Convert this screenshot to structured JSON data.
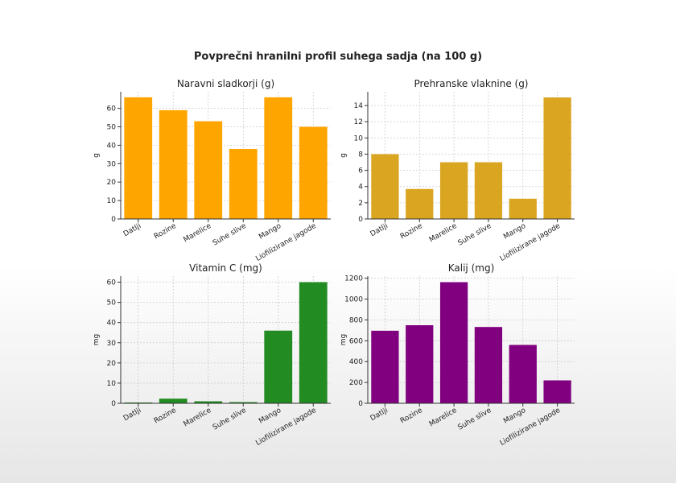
{
  "figure_title": "Povprečni hranilni profil suhega sadja (na 100 g)",
  "chart_data": [
    {
      "type": "bar",
      "title": "Naravni sladkorji (g)",
      "ylabel": "g",
      "xlabel": "",
      "categories": [
        "Datlji",
        "Rozine",
        "Marelice",
        "Suhe slive",
        "Mango",
        "Liofilizirane jagode"
      ],
      "values": [
        66,
        59,
        53,
        38,
        66,
        50
      ],
      "ylim": [
        0,
        69
      ],
      "yticks": [
        0,
        10,
        20,
        30,
        40,
        50,
        60
      ],
      "color": "#ffa500",
      "grid": true
    },
    {
      "type": "bar",
      "title": "Prehranske vlaknine (g)",
      "ylabel": "g",
      "xlabel": "",
      "categories": [
        "Datlji",
        "Rozine",
        "Marelice",
        "Suhe slive",
        "Mango",
        "Liofilizirane jagode"
      ],
      "values": [
        8,
        3.7,
        7,
        7,
        2.5,
        15
      ],
      "ylim": [
        0,
        15.7
      ],
      "yticks": [
        0,
        2,
        4,
        6,
        8,
        10,
        12,
        14
      ],
      "color": "#daa520",
      "grid": true
    },
    {
      "type": "bar",
      "title": "Vitamin C (mg)",
      "ylabel": "mg",
      "xlabel": "",
      "categories": [
        "Datlji",
        "Rozine",
        "Marelice",
        "Suhe slive",
        "Mango",
        "Liofilizirane jagode"
      ],
      "values": [
        0.4,
        2.3,
        1,
        0.6,
        36,
        60
      ],
      "ylim": [
        0,
        63
      ],
      "yticks": [
        0,
        10,
        20,
        30,
        40,
        50,
        60
      ],
      "color": "#228b22",
      "grid": true
    },
    {
      "type": "bar",
      "title": "Kalij (mg)",
      "ylabel": "mg",
      "xlabel": "",
      "categories": [
        "Datlji",
        "Rozine",
        "Marelice",
        "Suhe slive",
        "Mango",
        "Liofilizirane jagode"
      ],
      "values": [
        696,
        749,
        1162,
        732,
        560,
        220
      ],
      "ylim": [
        0,
        1220
      ],
      "yticks": [
        0,
        200,
        400,
        600,
        800,
        1000,
        1200
      ],
      "color": "#800080",
      "grid": true
    }
  ]
}
